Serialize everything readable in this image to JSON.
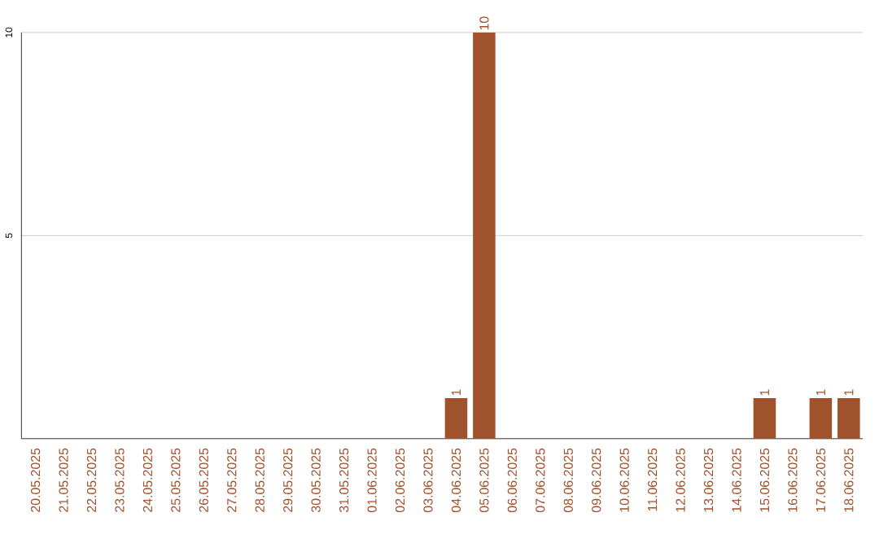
{
  "chart_data": {
    "type": "bar",
    "categories": [
      "20.05.2025",
      "21.05.2025",
      "22.05.2025",
      "23.05.2025",
      "24.05.2025",
      "25.05.2025",
      "26.05.2025",
      "27.05.2025",
      "28.05.2025",
      "29.05.2025",
      "30.05.2025",
      "31.05.2025",
      "01.06.2025",
      "02.06.2025",
      "03.06.2025",
      "04.06.2025",
      "05.06.2025",
      "06.06.2025",
      "07.06.2025",
      "08.06.2025",
      "09.06.2025",
      "10.06.2025",
      "11.06.2025",
      "12.06.2025",
      "13.06.2025",
      "14.06.2025",
      "15.06.2025",
      "16.06.2025",
      "17.06.2025",
      "18.06.2025"
    ],
    "values": [
      0,
      0,
      0,
      0,
      0,
      0,
      0,
      0,
      0,
      0,
      0,
      0,
      0,
      0,
      0,
      1,
      10,
      0,
      0,
      0,
      0,
      0,
      0,
      0,
      0,
      0,
      1,
      0,
      1,
      1
    ],
    "value_labels": [
      null,
      null,
      null,
      null,
      null,
      null,
      null,
      null,
      null,
      null,
      null,
      null,
      null,
      null,
      null,
      "1",
      "10",
      null,
      null,
      null,
      null,
      null,
      null,
      null,
      null,
      null,
      "1",
      null,
      "1",
      "1"
    ],
    "color": "#a0522d",
    "ylim": [
      0,
      10
    ],
    "yticks": [
      5,
      10
    ],
    "grid": "y"
  }
}
